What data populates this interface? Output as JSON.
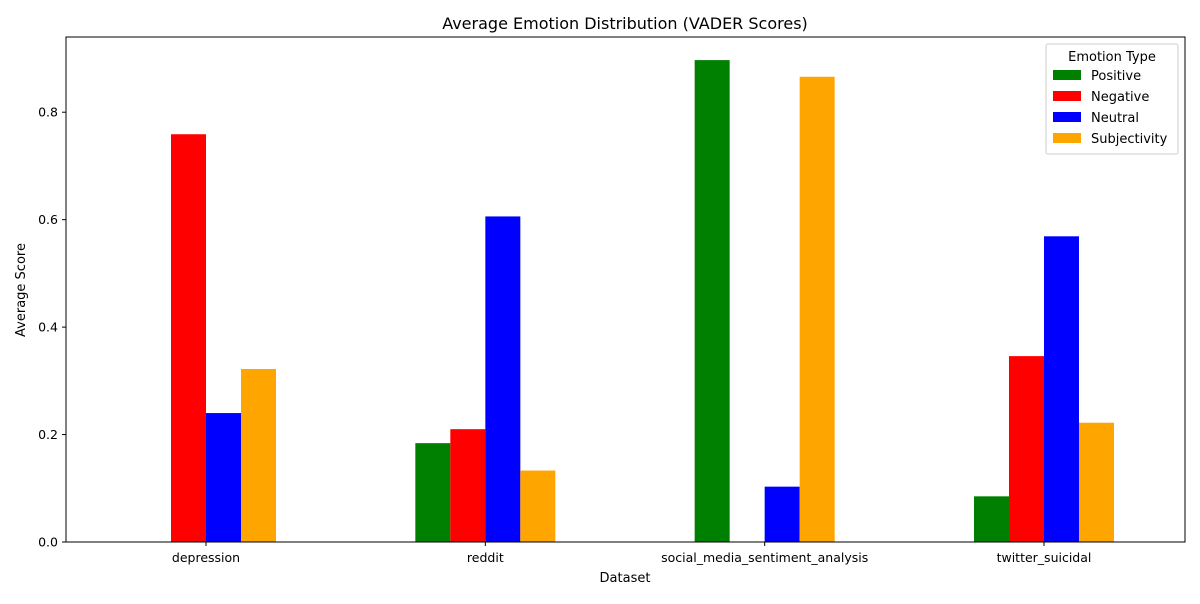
{
  "chart_data": {
    "type": "bar",
    "title": "Average Emotion Distribution (VADER Scores)",
    "xlabel": "Dataset",
    "ylabel": "Average Score",
    "categories": [
      "depression",
      "reddit",
      "social_media_sentiment_analysis",
      "twitter_suicidal"
    ],
    "ylim": [
      0,
      0.94
    ],
    "yticks": [
      0.0,
      0.2,
      0.4,
      0.6,
      0.8
    ],
    "ytick_labels": [
      "0.0",
      "0.2",
      "0.4",
      "0.6",
      "0.8"
    ],
    "grid": false,
    "legend": {
      "title": "Emotion Type",
      "placement": "top-right"
    },
    "series": [
      {
        "name": "Positive",
        "color": "#008000",
        "values": [
          0.0,
          0.184,
          0.897,
          0.085
        ]
      },
      {
        "name": "Negative",
        "color": "#ff0000",
        "values": [
          0.759,
          0.21,
          0.0,
          0.346
        ]
      },
      {
        "name": "Neutral",
        "color": "#0000ff",
        "values": [
          0.24,
          0.606,
          0.103,
          0.569
        ]
      },
      {
        "name": "Subjectivity",
        "color": "#ffa500",
        "values": [
          0.322,
          0.133,
          0.866,
          0.222
        ]
      }
    ]
  }
}
